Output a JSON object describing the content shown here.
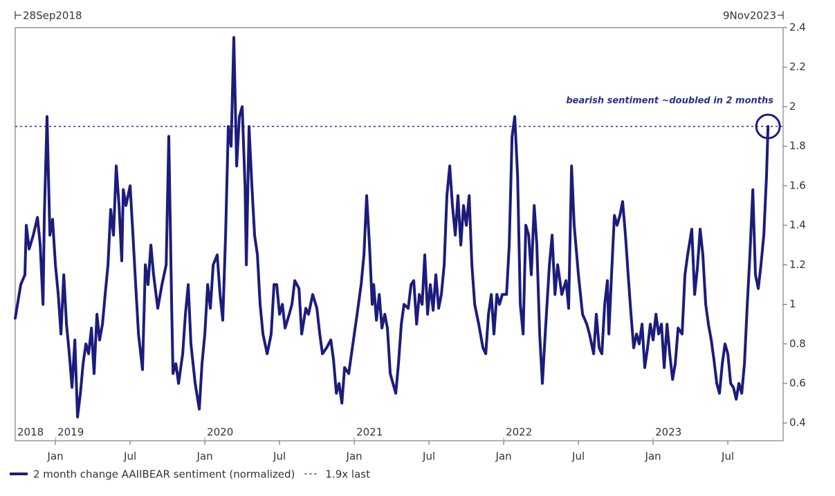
{
  "chart_data": {
    "type": "line",
    "start_label": "28Sep2018",
    "end_label": "9Nov2023",
    "annotation": "bearish sentiment ~doubled in 2 months",
    "x": [
      2018.731,
      2018.768,
      2018.796,
      2018.805,
      2018.824,
      2018.852,
      2018.88,
      2018.898,
      2018.917,
      2018.926,
      2018.944,
      2018.963,
      2018.981,
      2019.0,
      2019.019,
      2019.037,
      2019.056,
      2019.074,
      2019.093,
      2019.111,
      2019.13,
      2019.148,
      2019.167,
      2019.185,
      2019.204,
      2019.222,
      2019.241,
      2019.259,
      2019.278,
      2019.296,
      2019.315,
      2019.333,
      2019.352,
      2019.37,
      2019.389,
      2019.407,
      2019.426,
      2019.444,
      2019.454,
      2019.472,
      2019.5,
      2019.519,
      2019.537,
      2019.556,
      2019.583,
      2019.602,
      2019.62,
      2019.639,
      2019.657,
      2019.685,
      2019.713,
      2019.741,
      2019.759,
      2019.778,
      2019.787,
      2019.806,
      2019.824,
      2019.852,
      2019.87,
      2019.889,
      2019.907,
      2019.935,
      2019.963,
      2019.981,
      2020.0,
      2020.019,
      2020.037,
      2020.056,
      2020.083,
      2020.102,
      2020.12,
      2020.139,
      2020.157,
      2020.176,
      2020.194,
      2020.213,
      2020.231,
      2020.25,
      2020.269,
      2020.278,
      2020.296,
      2020.315,
      2020.333,
      2020.352,
      2020.37,
      2020.389,
      2020.417,
      2020.444,
      2020.463,
      2020.481,
      2020.5,
      2020.519,
      2020.537,
      2020.565,
      2020.583,
      2020.602,
      2020.63,
      2020.648,
      2020.676,
      2020.694,
      2020.722,
      2020.75,
      2020.769,
      2020.787,
      2020.815,
      2020.843,
      2020.861,
      2020.88,
      2020.898,
      2020.917,
      2020.935,
      2020.963,
      2020.991,
      2021.019,
      2021.046,
      2021.065,
      2021.083,
      2021.102,
      2021.12,
      2021.13,
      2021.148,
      2021.167,
      2021.185,
      2021.204,
      2021.222,
      2021.241,
      2021.259,
      2021.278,
      2021.296,
      2021.315,
      2021.333,
      2021.361,
      2021.38,
      2021.398,
      2021.417,
      2021.435,
      2021.454,
      2021.472,
      2021.491,
      2021.509,
      2021.528,
      2021.546,
      2021.565,
      2021.583,
      2021.602,
      2021.62,
      2021.639,
      2021.657,
      2021.676,
      2021.694,
      2021.713,
      2021.731,
      2021.75,
      2021.769,
      2021.787,
      2021.806,
      2021.833,
      2021.861,
      2021.88,
      2021.898,
      2021.917,
      2021.935,
      2021.954,
      2021.972,
      2021.991,
      2022.019,
      2022.037,
      2022.056,
      2022.074,
      2022.093,
      2022.111,
      2022.13,
      2022.148,
      2022.167,
      2022.185,
      2022.204,
      2022.222,
      2022.241,
      2022.259,
      2022.278,
      2022.306,
      2022.324,
      2022.343,
      2022.361,
      2022.389,
      2022.417,
      2022.435,
      2022.454,
      2022.472,
      2022.5,
      2022.528,
      2022.556,
      2022.574,
      2022.602,
      2022.62,
      2022.639,
      2022.657,
      2022.676,
      2022.694,
      2022.704,
      2022.722,
      2022.741,
      2022.759,
      2022.778,
      2022.796,
      2022.815,
      2022.833,
      2022.852,
      2022.87,
      2022.889,
      2022.907,
      2022.926,
      2022.944,
      2022.963,
      2022.981,
      2023.0,
      2023.019,
      2023.037,
      2023.056,
      2023.074,
      2023.093,
      2023.111,
      2023.13,
      2023.148,
      2023.167,
      2023.194,
      2023.213,
      2023.231,
      2023.259,
      2023.278,
      2023.296,
      2023.315,
      2023.333,
      2023.352,
      2023.37,
      2023.389,
      2023.407,
      2023.426,
      2023.444,
      2023.463,
      2023.481,
      2023.5,
      2023.519,
      2023.537,
      2023.556,
      2023.574,
      2023.593,
      2023.611,
      2023.63,
      2023.648,
      2023.667,
      2023.685,
      2023.704,
      2023.722,
      2023.741,
      2023.759,
      2023.769
    ],
    "series": [
      {
        "name": "2 month change AAIIBEAR sentiment (normalized)",
        "color": "#1c1c7c",
        "values": [
          0.93,
          1.1,
          1.15,
          1.4,
          1.28,
          1.35,
          1.44,
          1.3,
          1.0,
          1.45,
          1.95,
          1.35,
          1.43,
          1.2,
          1.05,
          0.85,
          1.15,
          0.9,
          0.75,
          0.58,
          0.82,
          0.43,
          0.55,
          0.7,
          0.8,
          0.75,
          0.88,
          0.65,
          0.95,
          0.82,
          0.9,
          1.05,
          1.2,
          1.48,
          1.35,
          1.7,
          1.5,
          1.22,
          1.58,
          1.5,
          1.6,
          1.35,
          1.1,
          0.85,
          0.67,
          1.2,
          1.1,
          1.3,
          1.15,
          0.98,
          1.1,
          1.2,
          1.85,
          1.0,
          0.65,
          0.7,
          0.6,
          0.75,
          0.95,
          1.1,
          0.8,
          0.6,
          0.47,
          0.7,
          0.85,
          1.1,
          0.98,
          1.2,
          1.25,
          1.05,
          0.92,
          1.35,
          1.9,
          1.8,
          2.35,
          1.7,
          1.95,
          2.0,
          1.6,
          1.2,
          1.9,
          1.6,
          1.35,
          1.25,
          1.0,
          0.85,
          0.75,
          0.85,
          1.1,
          1.1,
          0.95,
          1.0,
          0.88,
          0.95,
          1.0,
          1.12,
          1.08,
          0.85,
          0.98,
          0.95,
          1.05,
          0.98,
          0.85,
          0.75,
          0.78,
          0.82,
          0.72,
          0.55,
          0.6,
          0.5,
          0.68,
          0.65,
          0.8,
          0.95,
          1.1,
          1.25,
          1.55,
          1.3,
          1.0,
          1.1,
          0.92,
          1.05,
          0.88,
          0.95,
          0.88,
          0.65,
          0.6,
          0.55,
          0.7,
          0.9,
          1.0,
          0.98,
          1.1,
          1.12,
          0.9,
          1.05,
          1.0,
          1.25,
          0.95,
          1.1,
          0.97,
          1.15,
          0.98,
          1.05,
          1.2,
          1.55,
          1.7,
          1.5,
          1.35,
          1.55,
          1.3,
          1.5,
          1.4,
          1.55,
          1.2,
          1.0,
          0.9,
          0.78,
          0.75,
          0.95,
          1.05,
          0.85,
          1.05,
          1.0,
          1.05,
          1.05,
          1.3,
          1.85,
          1.95,
          1.65,
          1.0,
          0.85,
          1.4,
          1.35,
          1.15,
          1.5,
          1.3,
          0.85,
          0.6,
          0.85,
          1.2,
          1.35,
          1.05,
          1.2,
          1.05,
          1.12,
          0.98,
          1.7,
          1.4,
          1.15,
          0.95,
          0.9,
          0.85,
          0.75,
          0.95,
          0.78,
          0.75,
          1.0,
          1.12,
          0.85,
          1.15,
          1.45,
          1.4,
          1.45,
          1.52,
          1.35,
          1.15,
          0.95,
          0.78,
          0.85,
          0.8,
          0.9,
          0.68,
          0.78,
          0.9,
          0.82,
          0.95,
          0.85,
          0.9,
          0.68,
          0.9,
          0.75,
          0.62,
          0.7,
          0.88,
          0.85,
          1.15,
          1.25,
          1.38,
          1.05,
          1.18,
          1.38,
          1.25,
          1.0,
          0.9,
          0.82,
          0.72,
          0.6,
          0.55,
          0.7,
          0.8,
          0.75,
          0.6,
          0.58,
          0.52,
          0.6,
          0.55,
          0.7,
          1.0,
          1.25,
          1.58,
          1.15,
          1.08,
          1.2,
          1.35,
          1.65,
          1.9
        ]
      }
    ],
    "reference_line": {
      "name": "1.9x last",
      "value": 1.9,
      "color": "#3a3aa0"
    },
    "xlim": [
      2018.731,
      2023.87
    ],
    "ylim": [
      0.31,
      2.4
    ],
    "yticks": [
      0.4,
      0.6,
      0.8,
      1,
      1.2,
      1.4,
      1.6,
      1.8,
      2,
      2.2,
      2.4
    ],
    "xticks": [
      {
        "value": 2019.0,
        "label": "Jan"
      },
      {
        "value": 2019.5,
        "label": "Jul"
      },
      {
        "value": 2020.0,
        "label": "Jan"
      },
      {
        "value": 2020.5,
        "label": "Jul"
      },
      {
        "value": 2021.0,
        "label": "Jan"
      },
      {
        "value": 2021.5,
        "label": "Jul"
      },
      {
        "value": 2022.0,
        "label": "Jan"
      },
      {
        "value": 2022.5,
        "label": "Jul"
      },
      {
        "value": 2023.0,
        "label": "Jan"
      },
      {
        "value": 2023.5,
        "label": "Jul"
      }
    ],
    "year_ticks": [
      {
        "value": 2018.731,
        "label": "2018"
      },
      2019,
      2020,
      2021,
      2022,
      2023
    ],
    "grid": false
  }
}
